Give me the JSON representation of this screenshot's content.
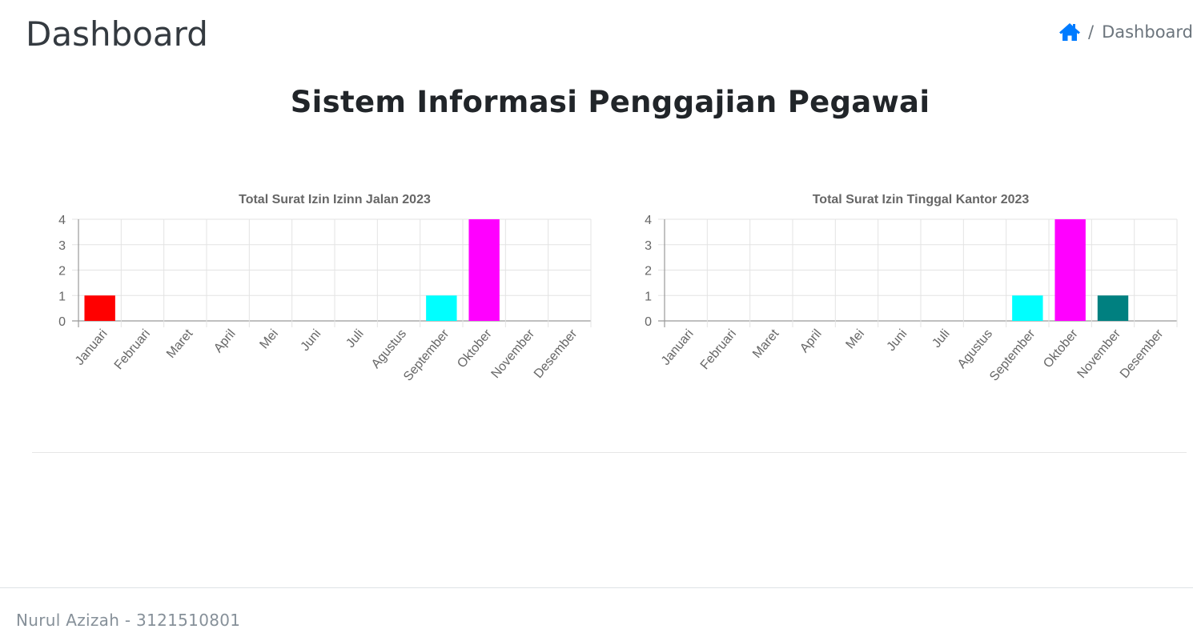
{
  "header": {
    "title": "Dashboard",
    "breadcrumb": {
      "home_icon": "home-icon",
      "separator": "/",
      "current": "Dashboard"
    }
  },
  "main": {
    "heading": "Sistem Informasi Penggajian Pegawai"
  },
  "chart_data": [
    {
      "type": "bar",
      "title": "Total Surat Izin Izinn Jalan 2023",
      "categories": [
        "Januari",
        "Februari",
        "Maret",
        "April",
        "Mei",
        "Juni",
        "Juli",
        "Agustus",
        "September",
        "Oktober",
        "November",
        "Desember"
      ],
      "values": [
        1,
        0,
        0,
        0,
        0,
        0,
        0,
        0,
        1,
        4,
        0,
        0
      ],
      "colors": [
        "#ff0000",
        "#ff0000",
        "#ff0000",
        "#ff0000",
        "#ff0000",
        "#ff0000",
        "#ff0000",
        "#ff0000",
        "#00ffff",
        "#ff00ff",
        "#008080",
        "#008080"
      ],
      "yticks": [
        "0",
        "1",
        "2",
        "3",
        "4"
      ],
      "ylim": [
        0,
        4
      ],
      "grid": true,
      "legend": "none"
    },
    {
      "type": "bar",
      "title": "Total Surat Izin Tinggal Kantor 2023",
      "categories": [
        "Januari",
        "Februari",
        "Maret",
        "April",
        "Mei",
        "Juni",
        "Juli",
        "Agustus",
        "September",
        "Oktober",
        "November",
        "Desember"
      ],
      "values": [
        0,
        0,
        0,
        0,
        0,
        0,
        0,
        0,
        1,
        4,
        1,
        0
      ],
      "colors": [
        "#ff0000",
        "#ff0000",
        "#ff0000",
        "#ff0000",
        "#ff0000",
        "#ff0000",
        "#ff0000",
        "#ff0000",
        "#00ffff",
        "#ff00ff",
        "#008080",
        "#008080"
      ],
      "yticks": [
        "0",
        "1",
        "2",
        "3",
        "4"
      ],
      "ylim": [
        0,
        4
      ],
      "grid": true,
      "legend": "none"
    }
  ],
  "footer": {
    "text": "Nurul Azizah - 3121510801"
  }
}
